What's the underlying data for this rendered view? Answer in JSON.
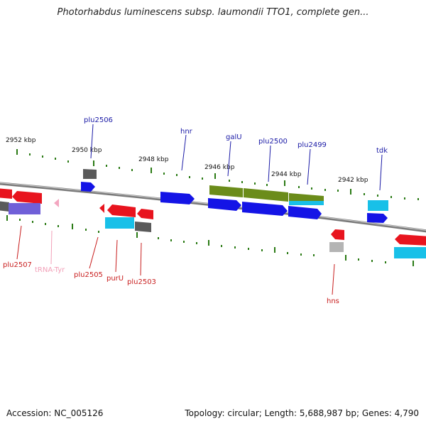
{
  "title": "Photorhabdus luminescens subsp. laumondii TTO1, complete gen...",
  "footer": {
    "accession": "Accession: NC_005126",
    "summary": "Topology: circular; Length: 5,688,987 bp; Genes: 4,790"
  },
  "ticks": [
    "2952 kbp",
    "2950 kbp",
    "2948 kbp",
    "2946 kbp",
    "2944 kbp",
    "2942 kbp"
  ],
  "genes_top": [
    "plu2506",
    "hnr",
    "galU",
    "plu2500",
    "plu2499",
    "tdk"
  ],
  "genes_bottom": [
    "plu2507",
    "tRNA-Tyr",
    "plu2505",
    "purU",
    "plu2503",
    "hns"
  ],
  "colors": {
    "label_top": "#1a1aa6",
    "label_bottom": "#c81e1e",
    "trna_label": "#f2a0b8",
    "red": "#e8141e",
    "blue": "#1414e6",
    "cyan": "#18c0e8",
    "olive": "#6b8c1a",
    "gray": "#5a5a5a",
    "lightgray": "#b4b4b4",
    "purple": "#7060d8",
    "pink": "#f3a6c0",
    "backbone": "#7a7a7a",
    "tick": "#2a7a14"
  }
}
